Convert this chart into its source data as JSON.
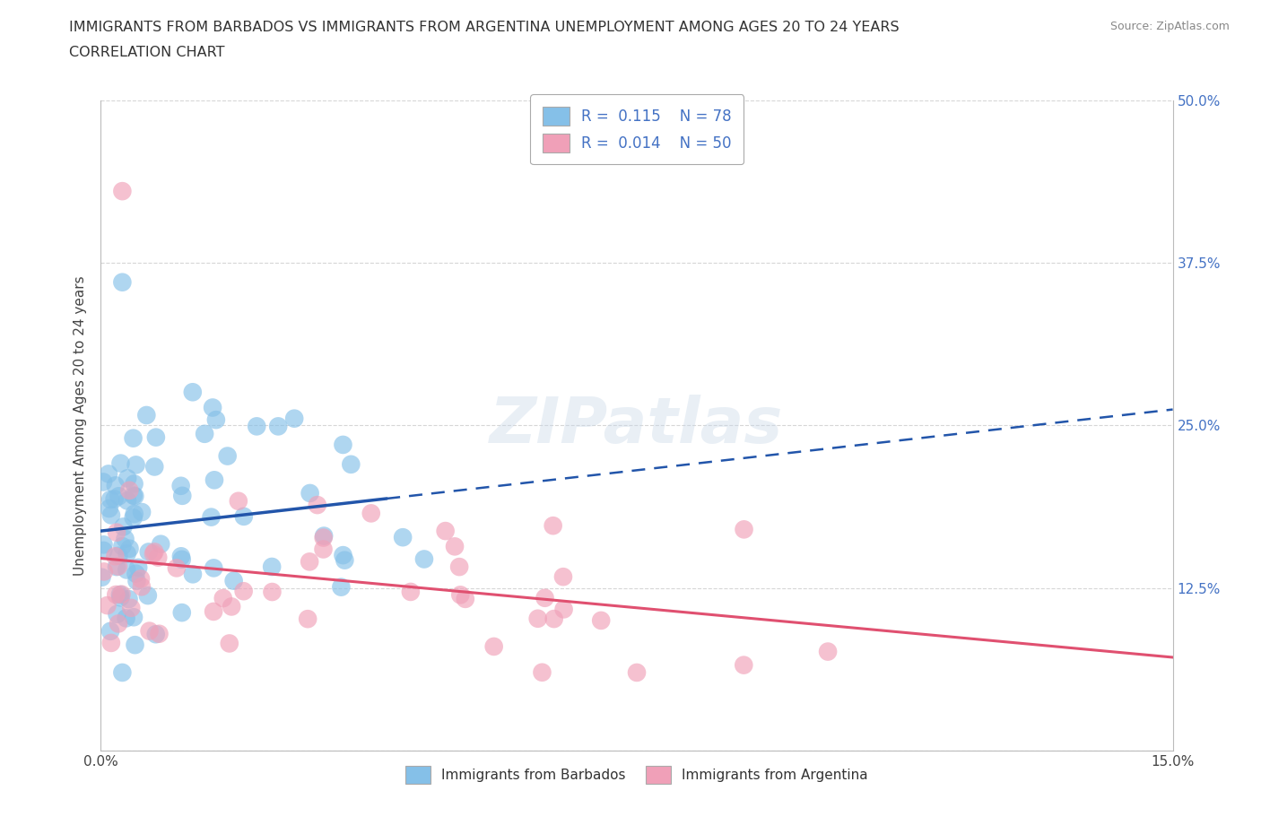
{
  "title_line1": "IMMIGRANTS FROM BARBADOS VS IMMIGRANTS FROM ARGENTINA UNEMPLOYMENT AMONG AGES 20 TO 24 YEARS",
  "title_line2": "CORRELATION CHART",
  "source_text": "Source: ZipAtlas.com",
  "ylabel": "Unemployment Among Ages 20 to 24 years",
  "xmin": 0.0,
  "xmax": 0.15,
  "ymin": 0.0,
  "ymax": 0.5,
  "legend_R_barbados": "0.115",
  "legend_N_barbados": "78",
  "legend_R_argentina": "0.014",
  "legend_N_argentina": "50",
  "color_barbados": "#85C0E8",
  "color_barbados_edge": "#85C0E8",
  "color_argentina": "#F0A0B8",
  "color_argentina_edge": "#F0A0B8",
  "trendline_color_barbados": "#2255AA",
  "trendline_color_argentina": "#E05070",
  "watermark": "ZIPatlas",
  "grid_color": "#cccccc",
  "background_color": "#ffffff"
}
